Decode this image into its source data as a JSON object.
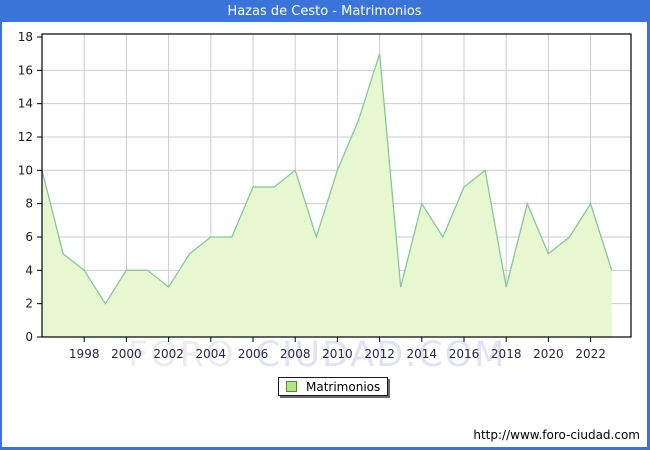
{
  "window": {
    "title": "Hazas de Cesto - Matrimonios",
    "titlebar_color": "#3b74d8"
  },
  "chart_data": {
    "type": "area",
    "title": "Hazas de Cesto - Matrimonios",
    "series": [
      {
        "name": "Matrimonios",
        "x": [
          1996,
          1997,
          1998,
          1999,
          2000,
          2001,
          2002,
          2003,
          2004,
          2005,
          2006,
          2007,
          2008,
          2009,
          2010,
          2011,
          2012,
          2013,
          2014,
          2015,
          2016,
          2017,
          2018,
          2019,
          2020,
          2021,
          2022,
          2023
        ],
        "values": [
          10,
          5,
          4,
          2,
          4,
          4,
          3,
          5,
          6,
          6,
          9,
          9,
          10,
          6,
          10,
          13,
          17,
          3,
          8,
          6,
          9,
          10,
          3,
          8,
          5,
          6,
          8,
          4
        ]
      }
    ],
    "xlabel": "",
    "ylabel": "",
    "ylim": [
      0,
      18
    ],
    "ytick_step": 2,
    "xticks": [
      1998,
      2000,
      2002,
      2004,
      2006,
      2008,
      2010,
      2012,
      2014,
      2016,
      2018,
      2020,
      2022
    ],
    "grid": true,
    "legend_position": "bottom",
    "colors": {
      "area_fill": "#e7f8d1",
      "line": "#86c79b",
      "gridline": "#cccccc",
      "plot_border": "#000000",
      "y_tick_text": "#1a1a1a",
      "x_tick_text": "#26264a"
    }
  },
  "legend": {
    "items": [
      {
        "label": "Matrimonios",
        "swatch_fill": "#b4e67e",
        "swatch_border": "#4e8f33"
      }
    ]
  },
  "watermark": {
    "part1": "FORO",
    "part2": "CIUDAD.COM"
  },
  "footer": {
    "url": "http://www.foro-ciudad.com"
  }
}
